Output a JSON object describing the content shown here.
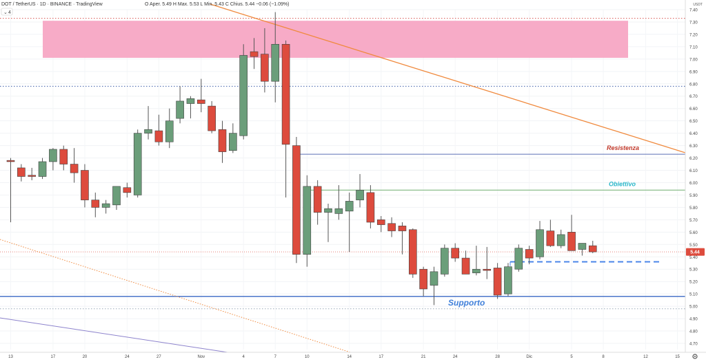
{
  "header": {
    "symbol": "DOT / TetherUS · 1D · BINANCE · TradingView",
    "ohlc": "O  Aper. 5.49  H  Max. 5.53  L  Min. 5.43  C  Chius. 5.44  −0.06 (−1.09%)",
    "collapse_label": "4",
    "currency": "USDT"
  },
  "price_badge": "5.44",
  "annotations": {
    "resistance": "Resistenza",
    "target": "Obiettivo",
    "support": "Supporto"
  },
  "colors": {
    "up": "#6b9e7a",
    "down": "#dd4b3d",
    "zone": "#f7a6c4",
    "resistance_line": "#5b6fb5",
    "target_line": "#6fae6f",
    "support_line": "#4a74c9",
    "trend_line": "#f08a3e",
    "dashed_level": "#4a86e8",
    "purple_line": "#8c82cc"
  },
  "chart_data": {
    "type": "candlestick",
    "y_axis": {
      "min": 4.65,
      "max": 7.4,
      "ticks": [
        "4.70",
        "4.80",
        "4.90",
        "5.00",
        "5.10",
        "5.20",
        "5.30",
        "5.40",
        "5.50",
        "5.60",
        "5.70",
        "5.80",
        "5.90",
        "6.00",
        "6.10",
        "6.20",
        "6.30",
        "6.40",
        "6.50",
        "6.60",
        "6.70",
        "6.80",
        "6.90",
        "7.00",
        "7.10",
        "7.20",
        "7.30",
        "7.40"
      ]
    },
    "x_axis": {
      "ticks": [
        "13",
        "17",
        "20",
        "24",
        "27",
        "Nov",
        "4",
        "7",
        "10",
        "14",
        "17",
        "21",
        "24",
        "28",
        "Dic",
        "5",
        "8",
        "12",
        "15"
      ]
    },
    "candles": [
      {
        "o": 6.18,
        "h": 6.2,
        "l": 5.68,
        "c": 6.17
      },
      {
        "o": 6.12,
        "h": 6.15,
        "l": 6.01,
        "c": 6.05
      },
      {
        "o": 6.06,
        "h": 6.12,
        "l": 6.02,
        "c": 6.05
      },
      {
        "o": 6.05,
        "h": 6.2,
        "l": 6.03,
        "c": 6.17
      },
      {
        "o": 6.17,
        "h": 6.28,
        "l": 6.1,
        "c": 6.27
      },
      {
        "o": 6.27,
        "h": 6.3,
        "l": 6.1,
        "c": 6.15
      },
      {
        "o": 6.15,
        "h": 6.28,
        "l": 6.0,
        "c": 6.08
      },
      {
        "o": 6.1,
        "h": 6.15,
        "l": 5.8,
        "c": 5.86
      },
      {
        "o": 5.86,
        "h": 5.92,
        "l": 5.72,
        "c": 5.8
      },
      {
        "o": 5.8,
        "h": 5.86,
        "l": 5.75,
        "c": 5.83
      },
      {
        "o": 5.82,
        "h": 5.97,
        "l": 5.78,
        "c": 5.97
      },
      {
        "o": 5.96,
        "h": 6.0,
        "l": 5.88,
        "c": 5.92
      },
      {
        "o": 5.9,
        "h": 6.43,
        "l": 5.88,
        "c": 6.4
      },
      {
        "o": 6.4,
        "h": 6.62,
        "l": 6.35,
        "c": 6.43
      },
      {
        "o": 6.42,
        "h": 6.55,
        "l": 6.3,
        "c": 6.33
      },
      {
        "o": 6.33,
        "h": 6.6,
        "l": 6.28,
        "c": 6.5
      },
      {
        "o": 6.52,
        "h": 6.78,
        "l": 6.48,
        "c": 6.66
      },
      {
        "o": 6.64,
        "h": 6.7,
        "l": 6.52,
        "c": 6.68
      },
      {
        "o": 6.67,
        "h": 6.84,
        "l": 6.57,
        "c": 6.64
      },
      {
        "o": 6.62,
        "h": 6.66,
        "l": 6.4,
        "c": 6.42
      },
      {
        "o": 6.43,
        "h": 6.5,
        "l": 6.16,
        "c": 6.25
      },
      {
        "o": 6.26,
        "h": 6.48,
        "l": 6.24,
        "c": 6.4
      },
      {
        "o": 6.38,
        "h": 7.12,
        "l": 6.35,
        "c": 7.03
      },
      {
        "o": 7.06,
        "h": 7.17,
        "l": 6.92,
        "c": 7.02
      },
      {
        "o": 7.04,
        "h": 7.25,
        "l": 6.73,
        "c": 6.82
      },
      {
        "o": 6.82,
        "h": 7.38,
        "l": 6.65,
        "c": 7.12
      },
      {
        "o": 7.12,
        "h": 7.15,
        "l": 5.88,
        "c": 6.31
      },
      {
        "o": 6.3,
        "h": 6.37,
        "l": 5.35,
        "c": 5.42
      },
      {
        "o": 5.42,
        "h": 6.06,
        "l": 5.32,
        "c": 5.97
      },
      {
        "o": 5.97,
        "h": 6.02,
        "l": 5.66,
        "c": 5.76
      },
      {
        "o": 5.76,
        "h": 5.83,
        "l": 5.52,
        "c": 5.79
      },
      {
        "o": 5.75,
        "h": 5.98,
        "l": 5.7,
        "c": 5.79
      },
      {
        "o": 5.77,
        "h": 5.92,
        "l": 5.44,
        "c": 5.85
      },
      {
        "o": 5.86,
        "h": 6.07,
        "l": 5.8,
        "c": 5.94
      },
      {
        "o": 5.92,
        "h": 5.98,
        "l": 5.63,
        "c": 5.68
      },
      {
        "o": 5.7,
        "h": 5.73,
        "l": 5.6,
        "c": 5.66
      },
      {
        "o": 5.67,
        "h": 5.72,
        "l": 5.56,
        "c": 5.61
      },
      {
        "o": 5.65,
        "h": 5.68,
        "l": 5.42,
        "c": 5.61
      },
      {
        "o": 5.62,
        "h": 5.63,
        "l": 5.23,
        "c": 5.26
      },
      {
        "o": 5.3,
        "h": 5.32,
        "l": 5.08,
        "c": 5.14
      },
      {
        "o": 5.17,
        "h": 5.32,
        "l": 5.01,
        "c": 5.28
      },
      {
        "o": 5.26,
        "h": 5.5,
        "l": 5.24,
        "c": 5.47
      },
      {
        "o": 5.47,
        "h": 5.51,
        "l": 5.36,
        "c": 5.39
      },
      {
        "o": 5.39,
        "h": 5.45,
        "l": 5.26,
        "c": 5.26
      },
      {
        "o": 5.27,
        "h": 5.49,
        "l": 5.25,
        "c": 5.3
      },
      {
        "o": 5.3,
        "h": 5.48,
        "l": 5.22,
        "c": 5.29
      },
      {
        "o": 5.31,
        "h": 5.35,
        "l": 5.06,
        "c": 5.09
      },
      {
        "o": 5.1,
        "h": 5.35,
        "l": 5.08,
        "c": 5.32
      },
      {
        "o": 5.3,
        "h": 5.5,
        "l": 5.28,
        "c": 5.47
      },
      {
        "o": 5.46,
        "h": 5.49,
        "l": 5.34,
        "c": 5.39
      },
      {
        "o": 5.4,
        "h": 5.69,
        "l": 5.38,
        "c": 5.62
      },
      {
        "o": 5.61,
        "h": 5.7,
        "l": 5.48,
        "c": 5.49
      },
      {
        "o": 5.49,
        "h": 5.62,
        "l": 5.47,
        "c": 5.58
      },
      {
        "o": 5.6,
        "h": 5.74,
        "l": 5.46,
        "c": 5.45
      },
      {
        "o": 5.46,
        "h": 5.51,
        "l": 5.41,
        "c": 5.51
      },
      {
        "o": 5.49,
        "h": 5.53,
        "l": 5.43,
        "c": 5.44
      }
    ],
    "levels": {
      "resistance": 6.23,
      "target": 5.94,
      "support": 5.08,
      "support_dotted": 4.98,
      "top_dotted": 7.33,
      "upper_dotted": 6.78,
      "dashed": 5.36
    },
    "zone": {
      "from": 7.01,
      "to": 7.31
    },
    "last_price": 5.44
  }
}
